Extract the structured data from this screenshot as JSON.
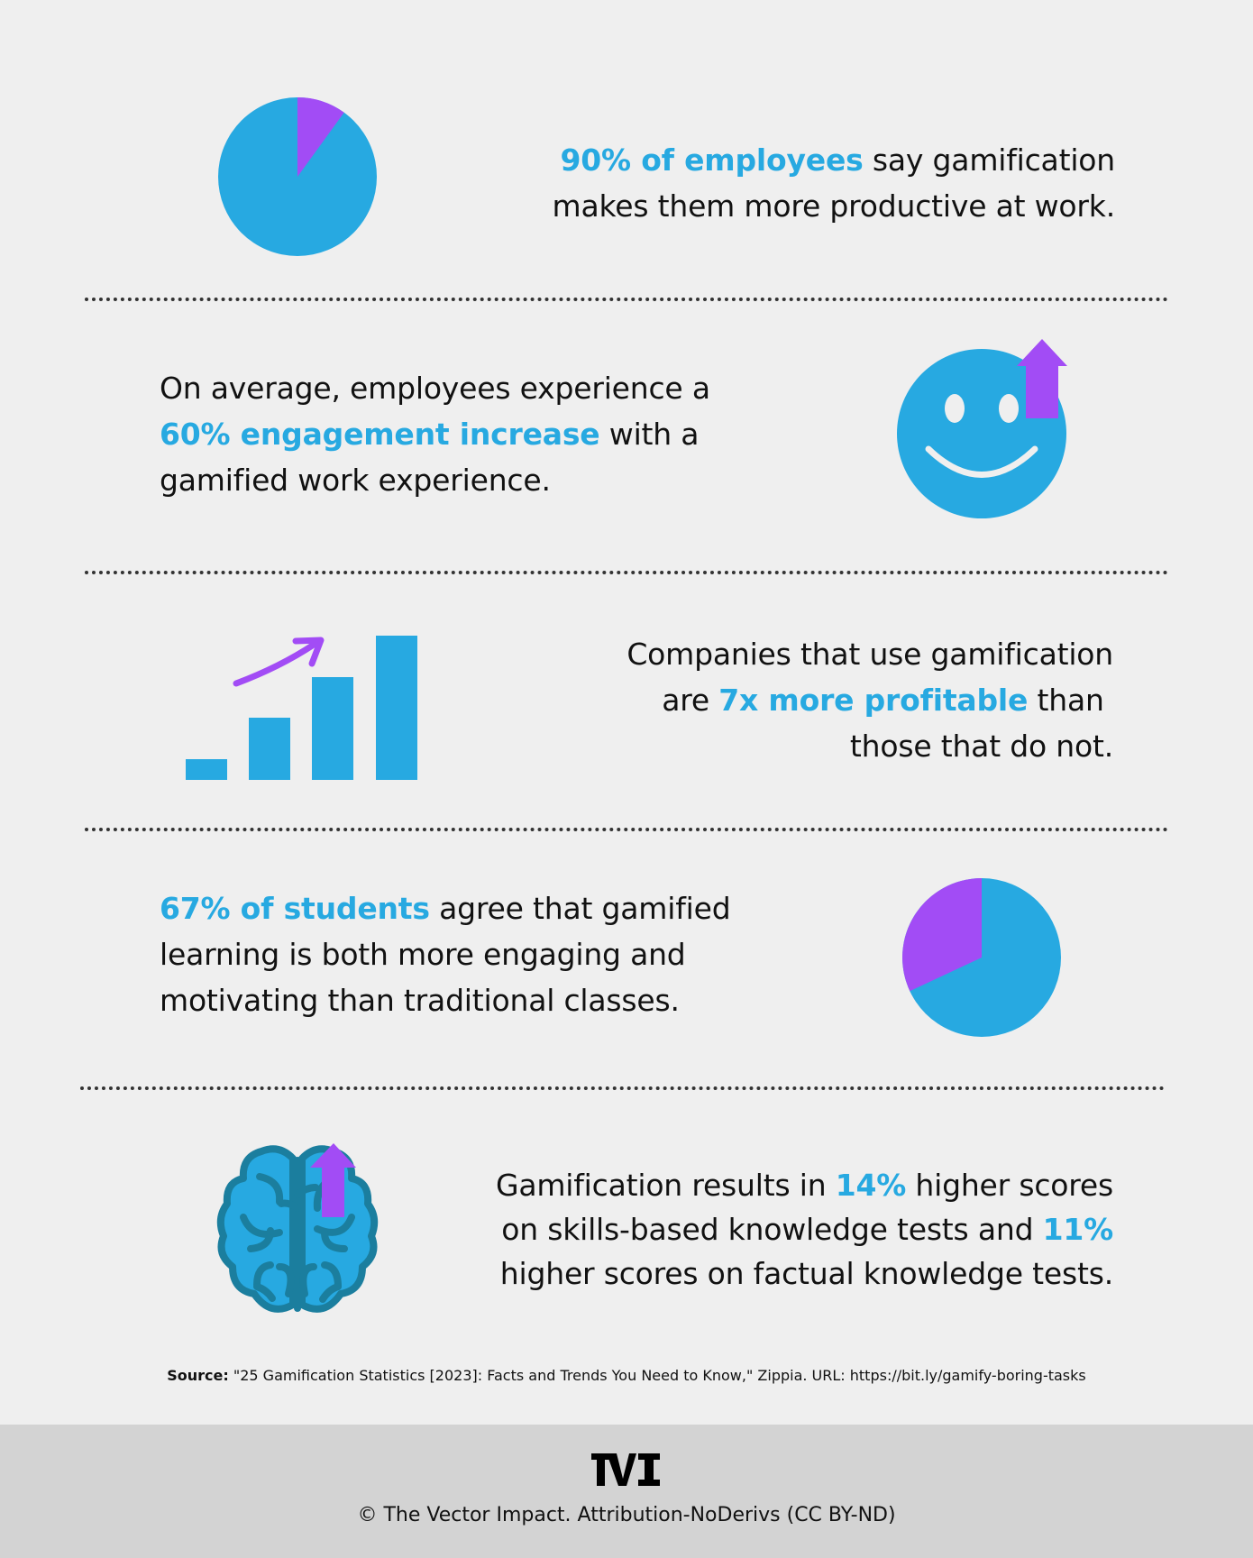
{
  "colors": {
    "accent_blue": "#27a9e1",
    "accent_purple": "#a24cf5",
    "background": "#efefef",
    "footer_bg": "#d3d3d3"
  },
  "stats": [
    {
      "icon": "pie-chart-icon",
      "value_percent": 90,
      "highlight": "90% of employees",
      "text_line1_rest": " say gamification",
      "text_line2": "makes them more productive at work."
    },
    {
      "icon": "smiley-arrow-up-icon",
      "line1": "On average, employees experience a",
      "highlight": "60% engagement increase",
      "line2_rest": " with a",
      "line3": "gamified work experience."
    },
    {
      "icon": "bar-chart-growth-icon",
      "line1": "Companies that use gamification",
      "line2_pre": "are ",
      "highlight": "7x more profitable",
      "line2_rest": " than",
      "line3": "those that do not."
    },
    {
      "icon": "pie-chart-icon",
      "value_percent": 67,
      "highlight": "67% of students",
      "line1_rest": " agree that gamified",
      "line2": "learning is both more engaging and",
      "line3": "motivating than traditional classes."
    },
    {
      "icon": "brain-arrow-up-icon",
      "line1_pre": "Gamification results in ",
      "highlight1": "14%",
      "line1_rest": " higher scores",
      "line2_pre": "on skills-based knowledge tests and ",
      "highlight2": "11%",
      "line3": "higher scores on factual knowledge tests."
    }
  ],
  "source": {
    "label": "Source:",
    "text": " \"25 Gamification Statistics [2023]: Facts and Trends You Need to Know,\" Zippia. URL: https://bit.ly/gamify-boring-tasks"
  },
  "footer": {
    "logo": "TVI",
    "copyright": "© The Vector Impact. Attribution-NoDerivs (CC BY-ND)"
  }
}
